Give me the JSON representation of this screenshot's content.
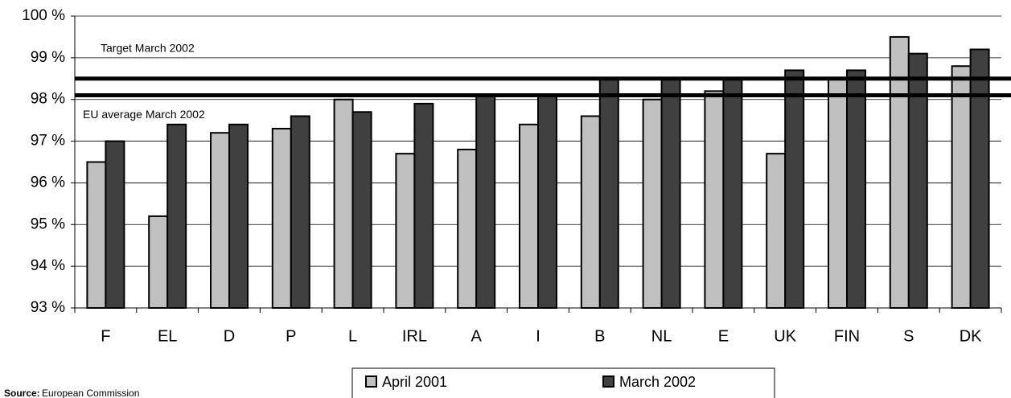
{
  "chart_data": {
    "type": "bar",
    "categories": [
      "F",
      "EL",
      "D",
      "P",
      "L",
      "IRL",
      "A",
      "I",
      "B",
      "NL",
      "E",
      "UK",
      "FIN",
      "S",
      "DK"
    ],
    "series": [
      {
        "name": "April 2001",
        "color": "#c0c0c0",
        "values": [
          96.5,
          95.2,
          97.2,
          97.3,
          98.0,
          96.7,
          96.8,
          97.4,
          97.6,
          98.0,
          98.2,
          96.7,
          98.5,
          99.5,
          98.8
        ]
      },
      {
        "name": "March 2002",
        "color": "#404040",
        "values": [
          97.0,
          97.4,
          97.4,
          97.6,
          97.7,
          97.9,
          98.1,
          98.1,
          98.5,
          98.5,
          98.5,
          98.7,
          98.7,
          99.1,
          99.2
        ]
      }
    ],
    "ylim": [
      93,
      100
    ],
    "yticks": [
      {
        "value": 93,
        "label": "93 %"
      },
      {
        "value": 94,
        "label": "94 %"
      },
      {
        "value": 95,
        "label": "95 %"
      },
      {
        "value": 96,
        "label": "96 %"
      },
      {
        "value": 97,
        "label": "97 %"
      },
      {
        "value": 98,
        "label": "98 %"
      },
      {
        "value": 99,
        "label": "99 %"
      },
      {
        "value": 100,
        "label": "100 %"
      }
    ],
    "grid": true,
    "reference_lines": [
      {
        "value": 98.5,
        "label": "Target March 2002"
      },
      {
        "value": 98.1,
        "label": "EU average March 2002"
      }
    ],
    "source": {
      "label": "Source:",
      "text": "European Commission"
    }
  }
}
